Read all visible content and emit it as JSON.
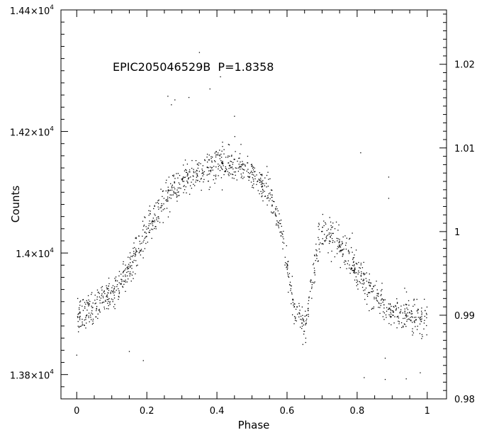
{
  "chart_data": {
    "type": "scatter",
    "annotation": "EPIC205046529B  P=1.8358",
    "xlabel": "Phase",
    "ylabel": "Counts",
    "xlim": [
      -0.045,
      1.055
    ],
    "ylim": [
      13760,
      14400
    ],
    "y2lim": [
      0.98,
      1.0265
    ],
    "grid": false,
    "legend": "none",
    "marker_color": "#000000",
    "x_ticks": [
      {
        "value": 0,
        "label": "0"
      },
      {
        "value": 0.2,
        "label": "0.2"
      },
      {
        "value": 0.4,
        "label": "0.4"
      },
      {
        "value": 0.6,
        "label": "0.6"
      },
      {
        "value": 0.8,
        "label": "0.8"
      },
      {
        "value": 1,
        "label": "1"
      }
    ],
    "y_ticks": [
      {
        "value": 13800,
        "mant": "1.38×10",
        "exp": "4"
      },
      {
        "value": 14000,
        "mant": "1.4×10",
        "exp": "4"
      },
      {
        "value": 14200,
        "mant": "1.42×10",
        "exp": "4"
      },
      {
        "value": 14400,
        "mant": "1.44×10",
        "exp": "4"
      }
    ],
    "y2_ticks": [
      {
        "value": 0.98,
        "label": "0.98"
      },
      {
        "value": 0.99,
        "label": "0.99"
      },
      {
        "value": 1.0,
        "label": "1"
      },
      {
        "value": 1.01,
        "label": "1.01"
      },
      {
        "value": 1.02,
        "label": "1.02"
      }
    ],
    "curve_phase": [
      0,
      0.05,
      0.1,
      0.15,
      0.2,
      0.25,
      0.3,
      0.35,
      0.4,
      0.45,
      0.5,
      0.55,
      0.58,
      0.6,
      0.62,
      0.65,
      0.68,
      0.7,
      0.75,
      0.8,
      0.85,
      0.9,
      0.95,
      1.0
    ],
    "curve_counts": [
      13895,
      13910,
      13935,
      13975,
      14040,
      14090,
      14120,
      14135,
      14148,
      14145,
      14130,
      14100,
      14050,
      13980,
      13910,
      13880,
      13980,
      14035,
      14015,
      13970,
      13930,
      13900,
      13895,
      13895
    ],
    "n_points": 1400,
    "scatter_sigma": 14,
    "outliers": [
      {
        "x": 0.35,
        "y": 14330
      },
      {
        "x": 0.41,
        "y": 14290
      },
      {
        "x": 0.26,
        "y": 14258
      },
      {
        "x": 0.28,
        "y": 14252
      },
      {
        "x": 0.32,
        "y": 14256
      },
      {
        "x": 0.27,
        "y": 14244
      },
      {
        "x": 0.38,
        "y": 14270
      },
      {
        "x": 0.45,
        "y": 14225
      },
      {
        "x": 0.81,
        "y": 14165
      },
      {
        "x": 0.89,
        "y": 14125
      },
      {
        "x": 0.89,
        "y": 14090
      },
      {
        "x": 0.15,
        "y": 13838
      },
      {
        "x": 0.19,
        "y": 13823
      },
      {
        "x": 0.88,
        "y": 13792
      },
      {
        "x": 0.94,
        "y": 13793
      },
      {
        "x": 0.98,
        "y": 13803
      },
      {
        "x": 0.0,
        "y": 13832
      },
      {
        "x": 0.88,
        "y": 13827
      },
      {
        "x": 0.82,
        "y": 13795
      }
    ]
  }
}
